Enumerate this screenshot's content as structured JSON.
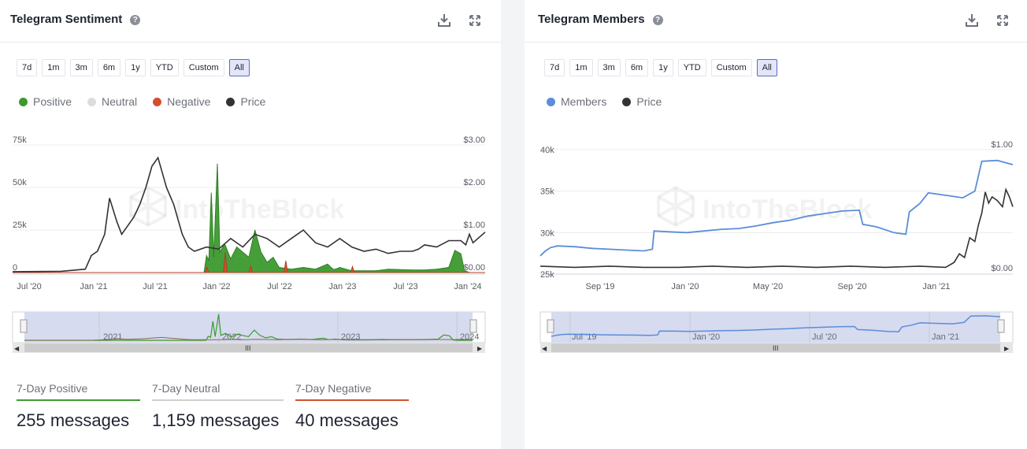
{
  "left": {
    "title": "Telegram Sentiment",
    "ranges": [
      "7d",
      "1m",
      "3m",
      "6m",
      "1y",
      "YTD",
      "Custom",
      "All"
    ],
    "active_range": "All",
    "legend": [
      {
        "label": "Positive",
        "color": "#3d9a2f"
      },
      {
        "label": "Neutral",
        "color": "#dcdcdc"
      },
      {
        "label": "Negative",
        "color": "#d2502d"
      },
      {
        "label": "Price",
        "color": "#333333"
      }
    ],
    "stats": [
      {
        "label": "7-Day Positive",
        "value": "255 messages",
        "color": "#3d9a2f"
      },
      {
        "label": "7-Day Neutral",
        "value": "1,159 messages",
        "color": "#d0d0d0"
      },
      {
        "label": "7-Day Negative",
        "value": "40 messages",
        "color": "#d2502d"
      }
    ],
    "watermark": "IntoTheBlock",
    "chart_data": {
      "type": "area",
      "x_ticks": [
        "Jul '20",
        "Jan '21",
        "Jul '21",
        "Jan '22",
        "Jul '22",
        "Jan '23",
        "Jul '23",
        "Jan '24"
      ],
      "y_left_ticks": [
        "0",
        "25k",
        "50k",
        "75k"
      ],
      "y_right_ticks": [
        "$0.00",
        "$1.00",
        "$2.00",
        "$3.00"
      ],
      "y_left_range": [
        0,
        75000
      ],
      "y_right_range": [
        0,
        3.0
      ],
      "navigator_labels": [
        "2021",
        "2022",
        "2023",
        "2024"
      ],
      "x_index_start": 0,
      "x_index_end": 44,
      "price": [
        [
          0,
          0.02
        ],
        [
          4,
          0.03
        ],
        [
          6,
          0.08
        ],
        [
          6.5,
          0.4
        ],
        [
          7,
          0.5
        ],
        [
          7.6,
          0.9
        ],
        [
          8,
          1.75
        ],
        [
          8.6,
          1.2
        ],
        [
          9,
          0.9
        ],
        [
          10,
          1.3
        ],
        [
          10.5,
          1.6
        ],
        [
          11,
          2.0
        ],
        [
          11.5,
          2.5
        ],
        [
          12,
          2.7
        ],
        [
          12.7,
          2.0
        ],
        [
          13.3,
          1.6
        ],
        [
          14,
          0.9
        ],
        [
          14.5,
          0.6
        ],
        [
          15,
          0.5
        ],
        [
          16,
          0.6
        ],
        [
          17,
          0.55
        ],
        [
          18,
          0.8
        ],
        [
          19,
          0.6
        ],
        [
          20,
          0.9
        ],
        [
          21,
          0.8
        ],
        [
          22,
          0.6
        ],
        [
          23,
          0.8
        ],
        [
          24,
          1.0
        ],
        [
          25,
          0.7
        ],
        [
          26,
          0.6
        ],
        [
          27,
          0.8
        ],
        [
          28,
          0.6
        ],
        [
          29,
          0.5
        ],
        [
          30,
          0.55
        ],
        [
          31,
          0.45
        ],
        [
          32,
          0.5
        ],
        [
          33,
          0.5
        ],
        [
          33.5,
          0.55
        ],
        [
          34,
          0.65
        ],
        [
          35,
          0.6
        ],
        [
          36,
          0.75
        ],
        [
          37,
          0.75
        ],
        [
          37.4,
          0.65
        ],
        [
          37.7,
          0.9
        ],
        [
          38,
          0.7
        ],
        [
          39,
          0.95
        ]
      ],
      "series": [
        {
          "name": "Positive",
          "values": [
            [
              0,
              0
            ],
            [
              15.8,
              0
            ],
            [
              16,
              10000
            ],
            [
              16.2,
              7000
            ],
            [
              16.4,
              47000
            ],
            [
              16.6,
              9000
            ],
            [
              16.9,
              64000
            ],
            [
              17.1,
              12000
            ],
            [
              17.5,
              17000
            ],
            [
              18,
              8000
            ],
            [
              18.5,
              15000
            ],
            [
              19,
              12000
            ],
            [
              19.5,
              9000
            ],
            [
              20,
              25000
            ],
            [
              20.5,
              12000
            ],
            [
              21,
              6000
            ],
            [
              21.5,
              9000
            ],
            [
              22,
              3000
            ],
            [
              23,
              2000
            ],
            [
              24,
              3000
            ],
            [
              25,
              2000
            ],
            [
              26,
              5000
            ],
            [
              26.5,
              1500
            ],
            [
              27,
              3000
            ],
            [
              28,
              1000
            ],
            [
              30,
              1000
            ],
            [
              31,
              2000
            ],
            [
              33,
              1500
            ],
            [
              34,
              1500
            ],
            [
              35,
              2000
            ],
            [
              36,
              3000
            ],
            [
              36.5,
              13000
            ],
            [
              37,
              11000
            ],
            [
              37.3,
              1000
            ],
            [
              37.7,
              0
            ],
            [
              39,
              0
            ]
          ]
        },
        {
          "name": "Neutral",
          "values": [
            [
              0,
              0
            ],
            [
              15.8,
              0
            ],
            [
              16,
              8000
            ],
            [
              16.5,
              10000
            ],
            [
              17,
              9000
            ],
            [
              17.5,
              8500
            ],
            [
              18,
              6000
            ],
            [
              18.5,
              9000
            ],
            [
              19,
              8000
            ],
            [
              19.5,
              6000
            ],
            [
              20,
              14000
            ],
            [
              20.5,
              7000
            ],
            [
              21,
              4000
            ],
            [
              22,
              2000
            ],
            [
              23,
              1500
            ],
            [
              24,
              2500
            ],
            [
              25,
              2000
            ],
            [
              26,
              3000
            ],
            [
              27,
              2000
            ],
            [
              28,
              1000
            ],
            [
              30,
              1000
            ],
            [
              32,
              1500
            ],
            [
              34,
              1500
            ],
            [
              35,
              2000
            ],
            [
              36,
              3000
            ],
            [
              36.5,
              9000
            ],
            [
              37,
              8000
            ],
            [
              37.4,
              1000
            ],
            [
              37.7,
              0
            ],
            [
              39,
              0
            ]
          ]
        },
        {
          "name": "Negative",
          "values": [
            [
              0,
              0
            ],
            [
              15.9,
              0
            ],
            [
              16.05,
              3000
            ],
            [
              16.2,
              0
            ],
            [
              17.4,
              0
            ],
            [
              17.55,
              12000
            ],
            [
              17.7,
              0
            ],
            [
              19.5,
              0
            ],
            [
              19.65,
              4000
            ],
            [
              19.8,
              0
            ],
            [
              22.4,
              0
            ],
            [
              22.55,
              7000
            ],
            [
              22.7,
              0
            ],
            [
              27.9,
              0
            ],
            [
              28.05,
              3500
            ],
            [
              28.2,
              0
            ],
            [
              39,
              0
            ]
          ]
        }
      ]
    }
  },
  "right": {
    "title": "Telegram Members",
    "ranges": [
      "7d",
      "1m",
      "3m",
      "6m",
      "1y",
      "YTD",
      "Custom",
      "All"
    ],
    "active_range": "All",
    "legend": [
      {
        "label": "Members",
        "color": "#5b8dd9"
      },
      {
        "label": "Price",
        "color": "#333333"
      }
    ],
    "watermark": "IntoTheBlock",
    "chart_data": {
      "type": "line",
      "x_ticks": [
        "Sep '19",
        "Jan '20",
        "May '20",
        "Sep '20",
        "Jan '21"
      ],
      "y_left_ticks": [
        "25k",
        "30k",
        "35k",
        "40k"
      ],
      "y_right_ticks": [
        "$0.00",
        "$1.00"
      ],
      "y_left_range": [
        25000,
        40000
      ],
      "y_right_range": [
        0,
        1.0
      ],
      "navigator_labels": [
        "Jul '19",
        "Jan '20",
        "Jul '20",
        "Jan '21"
      ],
      "series": [
        {
          "name": "Members",
          "values": [
            [
              0,
              27200
            ],
            [
              0.3,
              27800
            ],
            [
              0.6,
              28200
            ],
            [
              1,
              28400
            ],
            [
              2,
              28300
            ],
            [
              3,
              28100
            ],
            [
              4,
              28000
            ],
            [
              5,
              27900
            ],
            [
              6,
              27800
            ],
            [
              6.5,
              28000
            ],
            [
              6.6,
              30200
            ],
            [
              7.5,
              30100
            ],
            [
              8.5,
              30000
            ],
            [
              9.5,
              30200
            ],
            [
              10.5,
              30400
            ],
            [
              11.5,
              30500
            ],
            [
              12.5,
              30800
            ],
            [
              13.5,
              31200
            ],
            [
              14.5,
              31500
            ],
            [
              15.5,
              32000
            ],
            [
              16.5,
              32300
            ],
            [
              17.5,
              32600
            ],
            [
              18.5,
              32700
            ],
            [
              18.7,
              31000
            ],
            [
              19.5,
              30700
            ],
            [
              20.5,
              30000
            ],
            [
              21.2,
              29800
            ],
            [
              21.4,
              32500
            ],
            [
              22,
              33500
            ],
            [
              22.5,
              34800
            ],
            [
              23.5,
              34500
            ],
            [
              24.5,
              34200
            ],
            [
              25.2,
              35000
            ],
            [
              25.6,
              38600
            ],
            [
              26.5,
              38700
            ],
            [
              27.4,
              38200
            ]
          ]
        },
        {
          "name": "Price",
          "values": [
            [
              0,
              0.02
            ],
            [
              2,
              0.01
            ],
            [
              4,
              0.02
            ],
            [
              6,
              0.01
            ],
            [
              8,
              0.01
            ],
            [
              10,
              0.02
            ],
            [
              12,
              0.01
            ],
            [
              14,
              0.02
            ],
            [
              16,
              0.01
            ],
            [
              18,
              0.02
            ],
            [
              20,
              0.01
            ],
            [
              22,
              0.02
            ],
            [
              23.5,
              0.01
            ],
            [
              24,
              0.05
            ],
            [
              24.3,
              0.12
            ],
            [
              24.6,
              0.09
            ],
            [
              24.9,
              0.25
            ],
            [
              25.2,
              0.22
            ],
            [
              25.4,
              0.35
            ],
            [
              25.6,
              0.45
            ],
            [
              25.8,
              0.62
            ],
            [
              26,
              0.53
            ],
            [
              26.2,
              0.58
            ],
            [
              26.5,
              0.55
            ],
            [
              26.8,
              0.5
            ],
            [
              27,
              0.64
            ],
            [
              27.2,
              0.58
            ],
            [
              27.4,
              0.5
            ]
          ]
        }
      ]
    }
  }
}
